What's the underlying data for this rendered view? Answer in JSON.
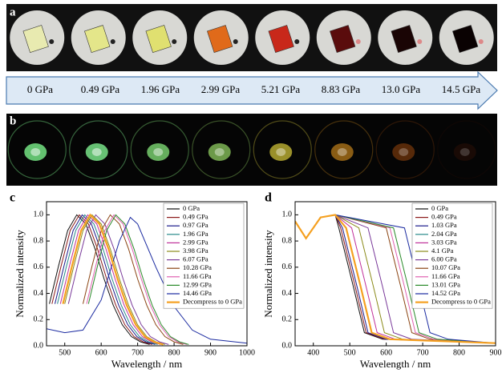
{
  "panel_labels": [
    "a",
    "b",
    "c",
    "d"
  ],
  "pressures": [
    "0 GPa",
    "0.49 GPa",
    "1.96 GPa",
    "2.99 GPa",
    "5.21 GPa",
    "8.83 GPa",
    "13.0 GPa",
    "14.5 GPa"
  ],
  "chart_data": [
    {
      "type": "line",
      "xlabel": "Wavelength / nm",
      "ylabel": "Normalized intensity",
      "xlim": [
        450,
        1000
      ],
      "xticks": [
        500,
        600,
        700,
        800,
        900,
        1000
      ],
      "ylim": [
        0,
        1.1
      ],
      "yticks": [
        {
          "value": 0,
          "label": "0.0"
        },
        0.2,
        0.4,
        0.6,
        0.8,
        {
          "value": 1,
          "label": "1.0"
        }
      ],
      "legend": "upper right",
      "series": [
        {
          "name": "0 GPa",
          "color": "#111111",
          "x": [
            458,
            483,
            508,
            533,
            558,
            583,
            608,
            633,
            658,
            683,
            708,
            733
          ],
          "values": [
            0.32,
            0.61,
            0.88,
            1,
            0.93,
            0.74,
            0.51,
            0.31,
            0.16,
            0.07,
            0.03,
            0.01
          ]
        },
        {
          "name": "0.49 GPa",
          "color": "#8b1a1a",
          "x": [
            465,
            490,
            515,
            540,
            565,
            590,
            615,
            640,
            665,
            690,
            715,
            740
          ],
          "values": [
            0.32,
            0.61,
            0.88,
            1,
            0.93,
            0.74,
            0.51,
            0.31,
            0.16,
            0.07,
            0.03,
            0.01
          ]
        },
        {
          "name": "0.97 GPa",
          "color": "#1a1a8b",
          "x": [
            473,
            498,
            523,
            548,
            573,
            598,
            623,
            648,
            673,
            698,
            723,
            748
          ],
          "values": [
            0.32,
            0.61,
            0.88,
            1,
            0.93,
            0.74,
            0.51,
            0.31,
            0.16,
            0.07,
            0.03,
            0.01
          ]
        },
        {
          "name": "1.96 GPa",
          "color": "#2a8a8a",
          "x": [
            480,
            505,
            530,
            555,
            580,
            605,
            630,
            655,
            680,
            705,
            730,
            755
          ],
          "values": [
            0.32,
            0.61,
            0.88,
            1,
            0.93,
            0.74,
            0.51,
            0.31,
            0.16,
            0.07,
            0.03,
            0.01
          ]
        },
        {
          "name": "2.99 GPa",
          "color": "#c0309a",
          "x": [
            488,
            513,
            538,
            563,
            588,
            613,
            638,
            663,
            688,
            713,
            738,
            763
          ],
          "values": [
            0.32,
            0.61,
            0.88,
            1,
            0.93,
            0.74,
            0.51,
            0.31,
            0.16,
            0.07,
            0.03,
            0.01
          ]
        },
        {
          "name": "3.98 GPa",
          "color": "#8b8b1a",
          "x": [
            500,
            525,
            550,
            575,
            600,
            625,
            650,
            675,
            700,
            725,
            750,
            775
          ],
          "values": [
            0.32,
            0.61,
            0.88,
            1,
            0.93,
            0.74,
            0.51,
            0.31,
            0.16,
            0.07,
            0.03,
            0.01
          ]
        },
        {
          "name": "6.07 GPa",
          "color": "#7a3a9a",
          "x": [
            510,
            535,
            560,
            585,
            610,
            635,
            660,
            685,
            710,
            735,
            760,
            785
          ],
          "values": [
            0.32,
            0.61,
            0.88,
            1,
            0.93,
            0.74,
            0.51,
            0.31,
            0.16,
            0.07,
            0.03,
            0.01
          ]
        },
        {
          "name": "10.28 GPa",
          "color": "#8b4513",
          "x": [
            550,
            575,
            600,
            625,
            650,
            675,
            700,
            725,
            750,
            775,
            800,
            825
          ],
          "values": [
            0.32,
            0.61,
            0.88,
            1,
            0.93,
            0.74,
            0.51,
            0.31,
            0.16,
            0.07,
            0.03,
            0.01
          ]
        },
        {
          "name": "11.66 GPa",
          "color": "#e060b0",
          "x": [
            560,
            585,
            610,
            635,
            660,
            685,
            710,
            735,
            760,
            785,
            810,
            835
          ],
          "values": [
            0.32,
            0.61,
            0.88,
            1,
            0.93,
            0.74,
            0.51,
            0.31,
            0.16,
            0.07,
            0.03,
            0.01
          ]
        },
        {
          "name": "12.99 GPa",
          "color": "#2a8a2a",
          "x": [
            565,
            590,
            615,
            640,
            665,
            690,
            715,
            740,
            765,
            790,
            815,
            840
          ],
          "values": [
            0.32,
            0.61,
            0.88,
            1,
            0.93,
            0.74,
            0.51,
            0.31,
            0.16,
            0.07,
            0.03,
            0.01
          ]
        },
        {
          "name": "14.46 GPa",
          "color": "#1a2aa0",
          "x": [
            450,
            500,
            550,
            600,
            650,
            680,
            700,
            750,
            800,
            850,
            900,
            1000
          ],
          "values": [
            0.13,
            0.1,
            0.12,
            0.35,
            0.8,
            0.98,
            0.93,
            0.6,
            0.3,
            0.12,
            0.05,
            0.02
          ]
        },
        {
          "name": "Decompress to 0 GPa",
          "color": "#f5a020",
          "x": [
            495,
            520,
            545,
            570,
            595,
            620,
            645,
            670,
            695,
            720,
            745,
            770
          ],
          "values": [
            0.32,
            0.61,
            0.88,
            1,
            0.93,
            0.74,
            0.51,
            0.31,
            0.16,
            0.07,
            0.03,
            0.01
          ]
        }
      ]
    },
    {
      "type": "line",
      "xlabel": "Wavelength / nm",
      "ylabel": "Normalized intensity",
      "xlim": [
        350,
        900
      ],
      "xticks": [
        400,
        500,
        600,
        700,
        800,
        900
      ],
      "ylim": [
        0,
        1.1
      ],
      "yticks": [
        {
          "value": 0,
          "label": "0.0"
        },
        0.2,
        0.4,
        0.6,
        0.8,
        {
          "value": 1,
          "label": "1.0"
        }
      ],
      "legend": "upper right",
      "series": [
        {
          "name": "0 GPa",
          "color": "#111111",
          "x": [
            350,
            380,
            420,
            460,
            470,
            510,
            540,
            590,
            900
          ],
          "values": [
            0.95,
            0.82,
            0.98,
            1,
            0.9,
            0.45,
            0.1,
            0.05,
            0.02
          ]
        },
        {
          "name": "0.49 GPa",
          "color": "#8b1a1a",
          "x": [
            350,
            380,
            420,
            460,
            475,
            515,
            545,
            595,
            900
          ],
          "values": [
            0.95,
            0.82,
            0.98,
            1,
            0.9,
            0.45,
            0.1,
            0.05,
            0.02
          ]
        },
        {
          "name": "1.03 GPa",
          "color": "#1a1a8b",
          "x": [
            350,
            380,
            420,
            460,
            480,
            520,
            550,
            600,
            900
          ],
          "values": [
            0.95,
            0.82,
            0.98,
            1,
            0.9,
            0.45,
            0.1,
            0.05,
            0.02
          ]
        },
        {
          "name": "2.04 GPa",
          "color": "#2a8a8a",
          "x": [
            350,
            380,
            420,
            460,
            490,
            530,
            560,
            610,
            900
          ],
          "values": [
            0.95,
            0.82,
            0.98,
            1,
            0.9,
            0.45,
            0.1,
            0.05,
            0.02
          ]
        },
        {
          "name": "3.03 GPa",
          "color": "#c0309a",
          "x": [
            350,
            380,
            420,
            460,
            505,
            545,
            575,
            625,
            900
          ],
          "values": [
            0.95,
            0.82,
            0.98,
            1,
            0.9,
            0.45,
            0.1,
            0.05,
            0.02
          ]
        },
        {
          "name": "4.1 GPa",
          "color": "#8b8b1a",
          "x": [
            350,
            380,
            420,
            460,
            525,
            565,
            595,
            645,
            900
          ],
          "values": [
            0.95,
            0.82,
            0.98,
            1,
            0.9,
            0.45,
            0.1,
            0.05,
            0.02
          ]
        },
        {
          "name": "6.00 GPa",
          "color": "#7a3a9a",
          "x": [
            350,
            380,
            420,
            460,
            550,
            590,
            620,
            670,
            900
          ],
          "values": [
            0.95,
            0.82,
            0.98,
            1,
            0.9,
            0.45,
            0.1,
            0.05,
            0.02
          ]
        },
        {
          "name": "10.07 GPa",
          "color": "#8b4513",
          "x": [
            350,
            380,
            420,
            460,
            600,
            640,
            670,
            720,
            900
          ],
          "values": [
            0.95,
            0.82,
            0.98,
            1,
            0.9,
            0.45,
            0.1,
            0.05,
            0.02
          ]
        },
        {
          "name": "11.66 GPa",
          "color": "#e060b0",
          "x": [
            350,
            380,
            420,
            460,
            610,
            650,
            680,
            730,
            900
          ],
          "values": [
            0.95,
            0.82,
            0.98,
            1,
            0.9,
            0.45,
            0.1,
            0.05,
            0.02
          ]
        },
        {
          "name": "13.01 GPa",
          "color": "#2a8a2a",
          "x": [
            350,
            380,
            420,
            460,
            620,
            660,
            690,
            740,
            900
          ],
          "values": [
            0.95,
            0.82,
            0.98,
            1,
            0.9,
            0.45,
            0.1,
            0.05,
            0.02
          ]
        },
        {
          "name": "14.52 GPa",
          "color": "#1a2aa0",
          "x": [
            350,
            380,
            420,
            460,
            650,
            690,
            720,
            770,
            900
          ],
          "values": [
            0.95,
            0.82,
            0.98,
            1,
            0.9,
            0.45,
            0.1,
            0.05,
            0.02
          ]
        },
        {
          "name": "Decompress to 0 GPa",
          "color": "#f5a020",
          "x": [
            350,
            380,
            420,
            460,
            490,
            530,
            560,
            610,
            900
          ],
          "values": [
            0.95,
            0.82,
            0.98,
            1,
            0.9,
            0.45,
            0.1,
            0.05,
            0.02
          ]
        }
      ]
    }
  ]
}
